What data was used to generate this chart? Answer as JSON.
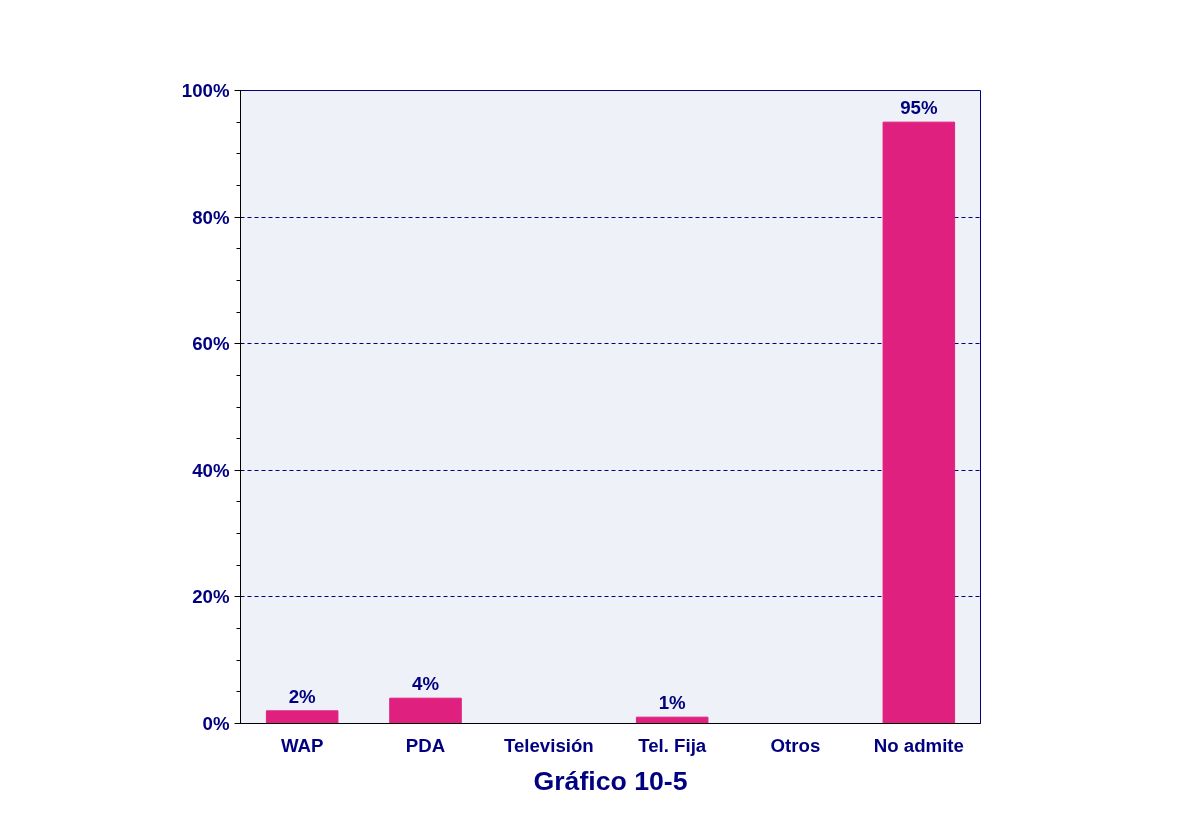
{
  "chart_data": {
    "type": "bar",
    "title": "Gráfico 10-5",
    "categories": [
      "WAP",
      "PDA",
      "Televisión",
      "Tel. Fija",
      "Otros",
      "No admite"
    ],
    "values": [
      2,
      4,
      0,
      1,
      0,
      95
    ],
    "value_labels": [
      "2%",
      "4%",
      null,
      "1%",
      null,
      "95%"
    ],
    "color": "#e0207f",
    "ylim": [
      0,
      100
    ],
    "yticks": [
      {
        "value": 0,
        "label": "0%"
      },
      {
        "value": 20,
        "label": "20%"
      },
      {
        "value": 40,
        "label": "40%"
      },
      {
        "value": 60,
        "label": "60%"
      },
      {
        "value": 80,
        "label": "80%"
      },
      {
        "value": 100,
        "label": "100%"
      }
    ],
    "grid": "y"
  }
}
